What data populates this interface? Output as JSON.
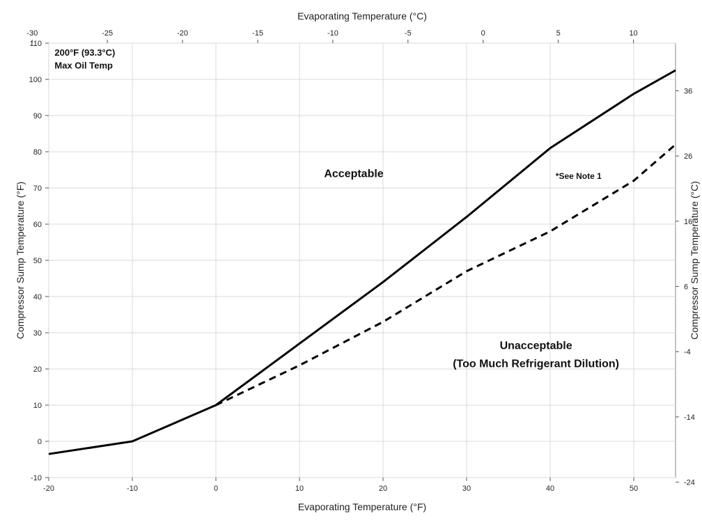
{
  "chart_data": {
    "type": "line",
    "xlabel": "Evaporating Temperature (°F)",
    "ylabel": "Compressor Sump Temperature (°F)",
    "x2label": "Evaporating Temperature (°C)",
    "y2label": "Compressor Sump Temperature (°C)",
    "xlim": [
      -20,
      55
    ],
    "ylim": [
      -10,
      110
    ],
    "x2lim": [
      -28.9,
      12.8
    ],
    "y2lim": [
      -23.3,
      43.3
    ],
    "grid": true,
    "x_ticks": [
      -20,
      -10,
      0,
      10,
      20,
      30,
      40,
      50
    ],
    "y_ticks": [
      -10,
      0,
      10,
      20,
      30,
      40,
      50,
      60,
      70,
      80,
      90,
      100,
      110
    ],
    "x2_ticks": [
      -30,
      -25,
      -20,
      -15,
      -10,
      -5,
      0,
      5,
      10
    ],
    "y2_ticks": [
      -24,
      -14,
      -4,
      6,
      16,
      26,
      36
    ],
    "series": [
      {
        "style": "solid",
        "color": "#000000",
        "points": [
          [
            -20,
            -3.5
          ],
          [
            -10,
            0
          ],
          [
            0,
            10
          ],
          [
            10,
            27
          ],
          [
            20,
            44
          ],
          [
            30,
            62
          ],
          [
            40,
            81
          ],
          [
            50,
            96
          ],
          [
            55,
            102.5
          ]
        ]
      },
      {
        "style": "dashed",
        "color": "#000000",
        "points": [
          [
            0,
            10
          ],
          [
            10,
            21
          ],
          [
            20,
            33
          ],
          [
            30,
            47
          ],
          [
            40,
            58
          ],
          [
            50,
            72
          ],
          [
            55,
            82
          ]
        ]
      }
    ],
    "annotations": [
      {
        "text": "200°F (93.3°C)",
        "x": -19.3,
        "y": 106.5
      },
      {
        "text": "Max Oil Temp",
        "x": -19.3,
        "y": 103.0
      },
      {
        "text": "Acceptable",
        "x": 16.5,
        "y": 73
      },
      {
        "text": "*See Note 1",
        "x": 43.4,
        "y": 72.5
      },
      {
        "text": "Unacceptable",
        "x": 38.3,
        "y": 25.5
      },
      {
        "text": "(Too Much Refrigerant Dilution)",
        "x": 38.3,
        "y": 20.5
      }
    ]
  }
}
